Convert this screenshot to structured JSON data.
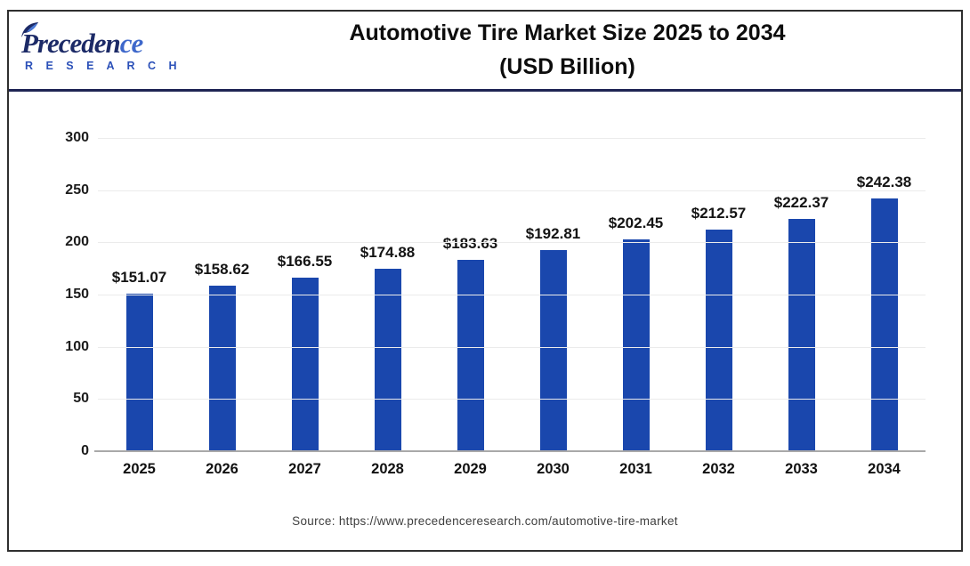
{
  "header": {
    "logo": {
      "brand_main": "Preceden",
      "brand_tail": "ce",
      "brand_sub": "R E S E A R C H"
    },
    "title_line1": "Automotive Tire Market Size 2025 to 2034",
    "title_line2": "(USD Billion)"
  },
  "chart_data": {
    "type": "bar",
    "title": "Automotive Tire Market Size 2025 to 2034 (USD Billion)",
    "categories": [
      "2025",
      "2026",
      "2027",
      "2028",
      "2029",
      "2030",
      "2031",
      "2032",
      "2033",
      "2034"
    ],
    "values": [
      151.07,
      158.62,
      166.55,
      174.88,
      183.63,
      192.81,
      202.45,
      212.57,
      222.37,
      242.38
    ],
    "labels": [
      "$151.07",
      "$158.62",
      "$166.55",
      "$174.88",
      "$183.63",
      "$192.81",
      "$202.45",
      "$212.57",
      "$222.37",
      "$242.38"
    ],
    "ylabel": "",
    "xlabel": "",
    "ylim": [
      0,
      300
    ],
    "yticks": [
      0,
      50,
      100,
      150,
      200,
      250,
      300
    ],
    "grid": true,
    "legend_position": "none",
    "bar_color": "#1a47ad"
  },
  "footer": {
    "source": "Source: https://www.precedenceresearch.com/automotive-tire-market"
  },
  "colors": {
    "bar": "#1a47ad",
    "header_rule": "#1e2454",
    "frame_border": "#2f2f2f",
    "brand_navy": "#1c2a67",
    "brand_blue": "#3e68cb",
    "gridline": "#ebebeb",
    "axis": "#a9a9a9"
  }
}
